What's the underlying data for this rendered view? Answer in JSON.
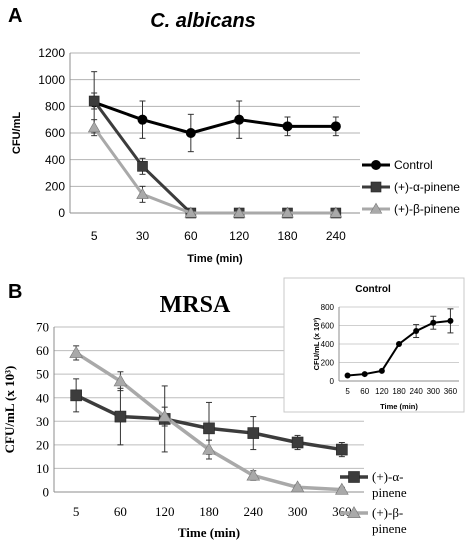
{
  "panels": {
    "a": {
      "letter": "A",
      "title": "C. albicans"
    },
    "b": {
      "letter": "B",
      "title": "MRSA"
    },
    "inset": {
      "title": "Control"
    }
  },
  "colors": {
    "control": "#000000",
    "alpha": "#3c3c3c",
    "beta": "#a9a9a9"
  },
  "chart_data": [
    {
      "id": "a",
      "type": "line",
      "title": "C. albicans",
      "xlabel": "Time (min)",
      "ylabel": "CFU/mL",
      "ylim": [
        0,
        1200
      ],
      "yticks": [
        0,
        200,
        400,
        600,
        800,
        1000,
        1200
      ],
      "categories": [
        "5",
        "30",
        "60",
        "120",
        "180",
        "240"
      ],
      "grid": "horizontal",
      "legend": "right",
      "series": [
        {
          "name": "Control",
          "marker": "circle",
          "color": "#000000",
          "values": [
            830,
            700,
            600,
            700,
            650,
            650
          ],
          "errors": [
            230,
            140,
            140,
            140,
            70,
            70
          ]
        },
        {
          "name": "(+)-α-pinene",
          "marker": "square",
          "color": "#3c3c3c",
          "values": [
            840,
            350,
            0,
            0,
            0,
            0
          ],
          "errors": [
            60,
            60,
            0,
            0,
            0,
            0
          ]
        },
        {
          "name": "(+)-β-pinene",
          "marker": "triangle",
          "color": "#a9a9a9",
          "values": [
            640,
            140,
            0,
            0,
            0,
            0
          ],
          "errors": [
            60,
            60,
            0,
            0,
            0,
            0
          ]
        }
      ]
    },
    {
      "id": "b",
      "type": "line",
      "title": "MRSA",
      "xlabel": "Time (min)",
      "ylabel": "CFU/mL (x 10³)",
      "ylim": [
        0,
        70
      ],
      "yticks": [
        0,
        10,
        20,
        30,
        40,
        50,
        60,
        70
      ],
      "categories": [
        "5",
        "60",
        "120",
        "180",
        "240",
        "300",
        "360"
      ],
      "grid": "horizontal",
      "legend": "bottom-right",
      "series": [
        {
          "name": "(+)-α-pinene",
          "marker": "square",
          "color": "#3c3c3c",
          "values": [
            41,
            32,
            31,
            27,
            25,
            21,
            18
          ],
          "errors": [
            7,
            12,
            14,
            11,
            7,
            3,
            3
          ]
        },
        {
          "name": "(+)-β-pinene",
          "marker": "triangle",
          "color": "#a9a9a9",
          "values": [
            59,
            47,
            32,
            18,
            7,
            2,
            1
          ],
          "errors": [
            3,
            4,
            4,
            4,
            2,
            1,
            1
          ]
        }
      ]
    },
    {
      "id": "inset",
      "type": "line",
      "title": "Control",
      "xlabel": "Time (min)",
      "ylabel": "CFU/mL (x 10³)",
      "ylim": [
        0,
        800
      ],
      "yticks": [
        0,
        200,
        400,
        600,
        800
      ],
      "categories": [
        "5",
        "60",
        "120",
        "180",
        "240",
        "300",
        "360"
      ],
      "grid": "horizontal",
      "legend": "none",
      "series": [
        {
          "name": "",
          "marker": "circle",
          "color": "#000000",
          "values": [
            60,
            75,
            110,
            400,
            540,
            630,
            650
          ],
          "errors": [
            0,
            0,
            0,
            0,
            70,
            70,
            130
          ]
        }
      ]
    }
  ]
}
